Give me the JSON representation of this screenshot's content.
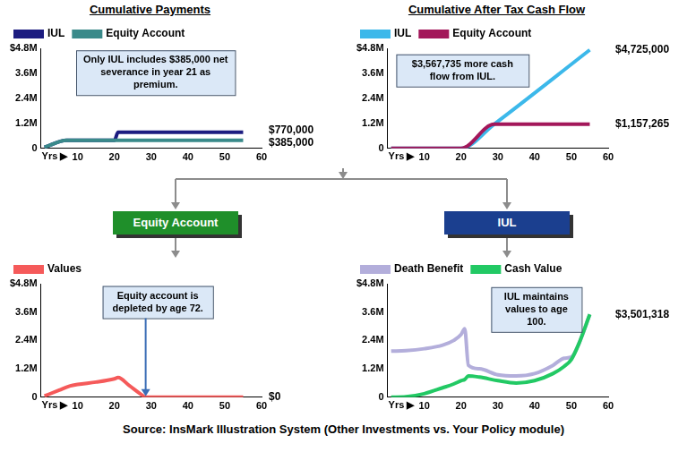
{
  "chart_data": [
    {
      "type": "line",
      "title": "Cumulative Payments",
      "xlabel": "Yrs ▶",
      "x": [
        1,
        7,
        20,
        21,
        55
      ],
      "series": [
        {
          "name": "IUL",
          "color": "#1c1c80",
          "values": [
            55000,
            385000,
            385000,
            770000,
            770000
          ],
          "value_labels": [
            null,
            null,
            null,
            null,
            "$770,000"
          ]
        },
        {
          "name": "Equity Account",
          "color": "#3a8a8a",
          "values": [
            55000,
            385000,
            385000,
            385000,
            385000
          ],
          "value_labels": [
            null,
            null,
            null,
            null,
            "$385,000"
          ]
        }
      ],
      "xlim": [
        0,
        60
      ],
      "xticks": [
        10,
        20,
        30,
        40,
        50,
        60
      ],
      "ylim": [
        0,
        4800000
      ],
      "yticks": [
        0,
        {
          "value": 1200000,
          "label": "1.2M"
        },
        {
          "value": 2400000,
          "label": "2.4M"
        },
        {
          "value": 3600000,
          "label": "3.6M"
        },
        {
          "value": 4800000,
          "label": "$4.8M"
        }
      ],
      "grid": false,
      "legend": "top-left",
      "data_labels": true,
      "annotations": [
        "Only IUL includes $385,000 net severance in year 21 as premium."
      ]
    },
    {
      "type": "line",
      "title": "Cumulative After Tax Cash Flow",
      "xlabel": "Yrs ▶",
      "x": [
        1,
        20,
        29,
        55
      ],
      "series": [
        {
          "name": "IUL",
          "color": "#3cb8ea",
          "values": [
            0,
            0,
            1160000,
            4725000
          ],
          "value_labels": [
            null,
            null,
            null,
            "$4,725,000"
          ]
        },
        {
          "name": "Equity Account",
          "color": "#a3175a",
          "values": [
            0,
            0,
            1157265,
            1157265
          ],
          "value_labels": [
            null,
            null,
            null,
            "$1,157,265"
          ]
        }
      ],
      "xlim": [
        0,
        60
      ],
      "xticks": [
        10,
        20,
        30,
        40,
        50,
        60
      ],
      "ylim": [
        0,
        4800000
      ],
      "yticks": [
        0,
        {
          "value": 1200000,
          "label": "1.2M"
        },
        {
          "value": 2400000,
          "label": "2.4M"
        },
        {
          "value": 3600000,
          "label": "3.6M"
        },
        {
          "value": 4800000,
          "label": "$4.8M"
        }
      ],
      "grid": false,
      "legend": "top-left",
      "data_labels": true,
      "annotations": [
        "$3,567,735 more cash flow from IUL."
      ]
    },
    {
      "type": "line",
      "xlabel": "Yrs ▶",
      "x": [
        1,
        5,
        8,
        10,
        15,
        20,
        21,
        24,
        27,
        28.5,
        30,
        40,
        55
      ],
      "series": [
        {
          "name": "Values",
          "color": "#f55a5a",
          "values": [
            50000,
            300000,
            480000,
            540000,
            640000,
            780000,
            830000,
            500000,
            150000,
            0,
            0,
            0,
            0
          ],
          "value_labels": [
            null,
            null,
            null,
            null,
            null,
            null,
            null,
            null,
            null,
            null,
            null,
            null,
            "$0"
          ]
        }
      ],
      "xlim": [
        0,
        60
      ],
      "xticks": [
        10,
        20,
        30,
        40,
        50,
        60
      ],
      "ylim": [
        0,
        4800000
      ],
      "yticks": [
        0,
        {
          "value": 1200000,
          "label": "1.2M"
        },
        {
          "value": 2400000,
          "label": "2.4M"
        },
        {
          "value": 3600000,
          "label": "3.6M"
        },
        {
          "value": 4800000,
          "label": "$4.8M"
        }
      ],
      "grid": false,
      "legend": "top-left",
      "data_labels": true,
      "annotations": [
        "Equity account is depleted by age 72."
      ]
    },
    {
      "type": "line",
      "xlabel": "Yrs ▶",
      "x": [
        1,
        5,
        10,
        15,
        18,
        20,
        21,
        22,
        25,
        30,
        35,
        40,
        45,
        48,
        50,
        52,
        55
      ],
      "series": [
        {
          "name": "Death Benefit",
          "color": "#b3aedb",
          "values": [
            1950000,
            1970000,
            2050000,
            2200000,
            2400000,
            2650000,
            2900000,
            1350000,
            1200000,
            950000,
            900000,
            1000000,
            1350000,
            1650000,
            1700000,
            2250000,
            3501318
          ]
        },
        {
          "name": "Cash Value",
          "color": "#22c964",
          "values": [
            0,
            20000,
            150000,
            400000,
            560000,
            700000,
            750000,
            900000,
            850000,
            700000,
            600000,
            700000,
            1000000,
            1300000,
            1600000,
            2250000,
            3501318
          ],
          "value_labels": [
            null,
            null,
            null,
            null,
            null,
            null,
            null,
            null,
            null,
            null,
            null,
            null,
            null,
            null,
            null,
            null,
            "$3,501,318"
          ]
        }
      ],
      "xlim": [
        0,
        60
      ],
      "xticks": [
        10,
        20,
        30,
        40,
        50,
        60
      ],
      "ylim": [
        0,
        4800000
      ],
      "yticks": [
        0,
        {
          "value": 1200000,
          "label": "1.2M"
        },
        {
          "value": 2400000,
          "label": "2.4M"
        },
        {
          "value": 3600000,
          "label": "3.6M"
        },
        {
          "value": 4800000,
          "label": "$4.8M"
        }
      ],
      "grid": false,
      "legend": "top-left",
      "data_labels": true,
      "annotations": [
        "IUL maintains values to age 100."
      ]
    }
  ],
  "branches": [
    "Equity Account",
    "IUL"
  ],
  "source": "Source: InsMark Illustration System (Other Investments vs. Your Policy module)"
}
